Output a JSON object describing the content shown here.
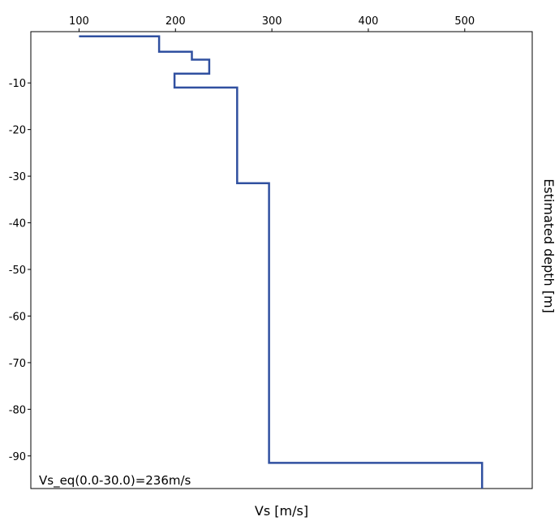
{
  "chart_data": {
    "type": "line",
    "xlabel": "Vs [m/s]",
    "ylabel": "Estimated depth [m]",
    "x_axis_position": "top",
    "y_axis_position": "left",
    "xlim": [
      50,
      570
    ],
    "ylim": [
      -97,
      1
    ],
    "x_ticks": [
      100,
      200,
      300,
      400,
      500
    ],
    "x_tick_labels": [
      "100",
      "200",
      "300",
      "400",
      "500"
    ],
    "y_ticks": [
      -10,
      -20,
      -30,
      -40,
      -50,
      -60,
      -70,
      -80,
      -90
    ],
    "y_tick_labels": [
      "-10",
      "-20",
      "-30",
      "-40",
      "-50",
      "-60",
      "-70",
      "-80",
      "-90"
    ],
    "grid": false,
    "annotation": "Vs_eq(0.0-30.0)=236m/s",
    "line_color": "#3050a0",
    "series": [
      {
        "points": [
          [
            100,
            0
          ],
          [
            183,
            0
          ],
          [
            183,
            -3.3
          ],
          [
            217,
            -3.3
          ],
          [
            217,
            -5
          ],
          [
            235,
            -5
          ],
          [
            235,
            -8
          ],
          [
            199,
            -8
          ],
          [
            199,
            -11
          ],
          [
            264,
            -11
          ],
          [
            264,
            -31.5
          ],
          [
            297,
            -31.5
          ],
          [
            297,
            -91.5
          ],
          [
            518,
            -91.5
          ],
          [
            518,
            -97
          ]
        ]
      }
    ]
  }
}
